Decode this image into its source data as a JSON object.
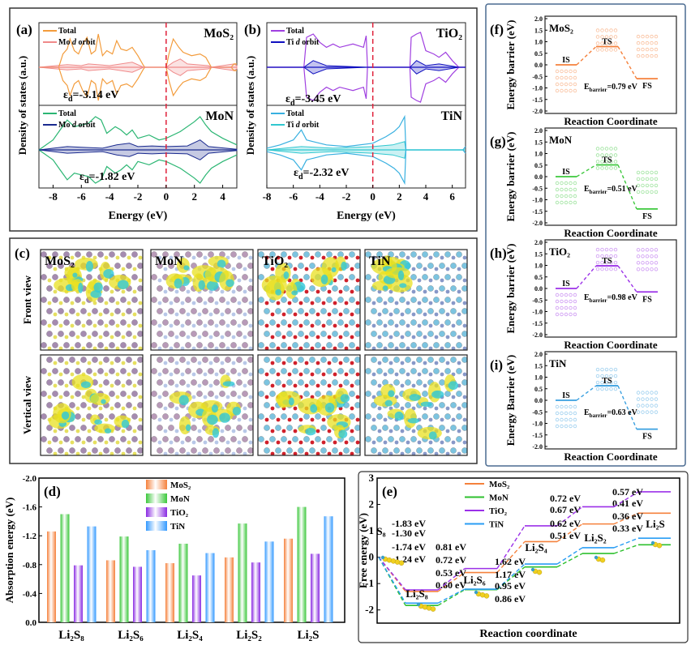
{
  "chart_data": [
    {
      "id": "a",
      "type": "line",
      "panel_label": "(a)",
      "xlabel": "Energy (eV)",
      "ylabel": "Density of states (a.u.)",
      "xlim": [
        -9,
        5
      ],
      "xticks": [
        -8,
        -6,
        -4,
        -2,
        0,
        2,
        4
      ],
      "fermi_level": 0,
      "subplots": [
        {
          "name": "MoS₂",
          "legend_total": "Total",
          "legend_d_pre": "Mo ",
          "legend_d_it": "d",
          "legend_d_post": " orbit",
          "ed_symbol": "ε",
          "ed_sub": "d",
          "ed_value": "=-3.14 eV",
          "color_total": "#f39c3c",
          "color_d": "#f08a8a",
          "total": [
            [
              -9,
              0
            ],
            [
              -7.6,
              0
            ],
            [
              -7.3,
              0.4
            ],
            [
              -7,
              0.55
            ],
            [
              -6.8,
              0.85
            ],
            [
              -6.5,
              0.5
            ],
            [
              -6.2,
              0.4
            ],
            [
              -5.9,
              0.7
            ],
            [
              -5.6,
              0.9
            ],
            [
              -5.3,
              0.4
            ],
            [
              -5.0,
              0.5
            ],
            [
              -4.8,
              1.0
            ],
            [
              -4.5,
              0.35
            ],
            [
              -4.2,
              0.5
            ],
            [
              -3.8,
              0.4
            ],
            [
              -3.5,
              0.8
            ],
            [
              -3.2,
              0.55
            ],
            [
              -2.8,
              0.5
            ],
            [
              -2.4,
              0.6
            ],
            [
              -2.0,
              0.35
            ],
            [
              -1.6,
              0.05
            ],
            [
              -1.5,
              0
            ],
            [
              0,
              0
            ],
            [
              0.2,
              0.4
            ],
            [
              0.5,
              0.85
            ],
            [
              0.9,
              0.6
            ],
            [
              1.2,
              0.45
            ],
            [
              1.8,
              0.35
            ],
            [
              2.4,
              0.4
            ],
            [
              2.8,
              0.3
            ],
            [
              3.2,
              0
            ],
            [
              4.6,
              0
            ],
            [
              4.8,
              0.1
            ],
            [
              5,
              0.1
            ]
          ],
          "d_orbit": [
            [
              -9,
              0
            ],
            [
              -7,
              0.08
            ],
            [
              -6,
              0.05
            ],
            [
              -5.5,
              0.1
            ],
            [
              -4,
              0.05
            ],
            [
              -2.4,
              0.15
            ],
            [
              -1.6,
              0
            ],
            [
              0,
              0
            ],
            [
              0.5,
              0.15
            ],
            [
              1,
              0.25
            ],
            [
              1.5,
              0.1
            ],
            [
              3,
              0.05
            ],
            [
              3.2,
              0
            ],
            [
              4.8,
              0.1
            ],
            [
              5,
              0.05
            ]
          ]
        },
        {
          "name": "MoN",
          "legend_total": "Total",
          "legend_d_pre": "Mo ",
          "legend_d_it": "d",
          "legend_d_post": " orbit",
          "ed_symbol": "ε",
          "ed_sub": "d",
          "ed_value": "=-1.82 eV",
          "color_total": "#2bb673",
          "color_d": "#1a2a8f",
          "total": [
            [
              -9,
              0
            ],
            [
              -8,
              0.3
            ],
            [
              -7.5,
              0.6
            ],
            [
              -7,
              0.9
            ],
            [
              -6.5,
              0.7
            ],
            [
              -6,
              0.75
            ],
            [
              -5.5,
              0.8
            ],
            [
              -5,
              1.0
            ],
            [
              -4.6,
              0.9
            ],
            [
              -4.2,
              0.5
            ],
            [
              -3.6,
              0.7
            ],
            [
              -3.2,
              0.6
            ],
            [
              -2.8,
              0.45
            ],
            [
              -2.4,
              0.6
            ],
            [
              -2,
              0.35
            ],
            [
              -1.2,
              0.45
            ],
            [
              -0.5,
              0.3
            ],
            [
              0,
              0.35
            ],
            [
              1,
              0.55
            ],
            [
              2,
              0.85
            ],
            [
              2.4,
              1.0
            ],
            [
              2.8,
              0.75
            ],
            [
              3.2,
              0.55
            ],
            [
              4,
              0.35
            ],
            [
              5,
              0.15
            ]
          ],
          "d_orbit": [
            [
              -9,
              0
            ],
            [
              -7,
              0.1
            ],
            [
              -6,
              0.08
            ],
            [
              -4.5,
              0.05
            ],
            [
              -3.5,
              0.15
            ],
            [
              -2.6,
              0.2
            ],
            [
              -2,
              0.1
            ],
            [
              -1,
              0.12
            ],
            [
              0,
              0.1
            ],
            [
              1.5,
              0.12
            ],
            [
              2.4,
              0.3
            ],
            [
              3,
              0.1
            ],
            [
              5,
              0.02
            ]
          ]
        }
      ]
    },
    {
      "id": "b",
      "type": "line",
      "panel_label": "(b)",
      "xlabel": "Energy (eV)",
      "ylabel": "Density of states (a.u.)",
      "xlim": [
        -8,
        7
      ],
      "xticks": [
        -8,
        -6,
        -4,
        -2,
        0,
        2,
        4,
        6
      ],
      "fermi_level": 0,
      "subplots": [
        {
          "name": "TiO₂",
          "legend_total": "Total",
          "legend_d_pre": "Ti ",
          "legend_d_it": "d",
          "legend_d_post": " orbit",
          "ed_symbol": "ε",
          "ed_sub": "d",
          "ed_value": "=-3.45 eV",
          "color_total": "#a040e0",
          "color_d": "#1010c0",
          "total": [
            [
              -8,
              0
            ],
            [
              -5.2,
              0
            ],
            [
              -5,
              0.9
            ],
            [
              -4.5,
              1.0
            ],
            [
              -4,
              0.75
            ],
            [
              -3.5,
              0.6
            ],
            [
              -3,
              0.7
            ],
            [
              -2.5,
              0.6
            ],
            [
              -1.5,
              0.7
            ],
            [
              -0.7,
              0.6
            ],
            [
              -0.5,
              0.95
            ],
            [
              -0.4,
              0
            ],
            [
              2.8,
              0
            ],
            [
              2.9,
              0.9
            ],
            [
              3.3,
              1.0
            ],
            [
              3.6,
              1.05
            ],
            [
              4,
              0.5
            ],
            [
              4.6,
              0.4
            ],
            [
              5,
              0.3
            ],
            [
              5.5,
              0.45
            ],
            [
              6,
              0.2
            ],
            [
              6.5,
              0
            ],
            [
              7,
              0
            ]
          ],
          "d_orbit": [
            [
              -8,
              0
            ],
            [
              -5.2,
              0
            ],
            [
              -4.5,
              0.2
            ],
            [
              -3.5,
              0.05
            ],
            [
              -0.4,
              0
            ],
            [
              2.8,
              0
            ],
            [
              3.3,
              0.2
            ],
            [
              4,
              0.05
            ],
            [
              5,
              0.1
            ],
            [
              6.5,
              0
            ],
            [
              7,
              0
            ]
          ]
        },
        {
          "name": "TiN",
          "legend_total": "Total",
          "legend_d_pre": "Ti ",
          "legend_d_it": "d",
          "legend_d_post": " orbit",
          "ed_symbol": "ε",
          "ed_sub": "d",
          "ed_value": "=-2.32 eV",
          "color_total": "#38b0e0",
          "color_d": "#30c8d0",
          "total": [
            [
              -8,
              0.05
            ],
            [
              -7,
              0.15
            ],
            [
              -6,
              0.3
            ],
            [
              -5.4,
              0.6
            ],
            [
              -5,
              0.3
            ],
            [
              -4.5,
              0.25
            ],
            [
              -3.5,
              0.15
            ],
            [
              -2,
              0.1
            ],
            [
              0,
              0.2
            ],
            [
              1,
              0.4
            ],
            [
              1.6,
              0.55
            ],
            [
              2,
              0.7
            ],
            [
              2.4,
              1.0
            ],
            [
              2.5,
              0
            ],
            [
              6.8,
              0
            ],
            [
              7,
              0.1
            ]
          ],
          "d_orbit": [
            [
              -8,
              0
            ],
            [
              -5.4,
              0.1
            ],
            [
              -3,
              0.05
            ],
            [
              0,
              0.1
            ],
            [
              1.5,
              0.15
            ],
            [
              2.4,
              0.25
            ],
            [
              2.5,
              0
            ],
            [
              7,
              0
            ]
          ]
        }
      ]
    },
    {
      "id": "d",
      "type": "bar",
      "panel_label": "(d)",
      "ylabel": "Absorption energy (eV)",
      "xlabel": "",
      "ylim": [
        0,
        -2.0
      ],
      "yticks": [
        0,
        -0.4,
        -0.8,
        -1.2,
        -1.6,
        -2.0
      ],
      "ytick_labels": [
        "0.0",
        "-0.4",
        "-0.8",
        "-1.2",
        "-1.6",
        "-2.0"
      ],
      "categories": [
        "Li₂S₈",
        "Li₂S₆",
        "Li₂S₄",
        "Li₂S₂",
        "Li₂S"
      ],
      "legend_position": "top-center",
      "series": [
        {
          "name": "MoS₂",
          "color": "#f5813c",
          "values": [
            -1.26,
            -0.86,
            -0.82,
            -0.9,
            -1.16
          ]
        },
        {
          "name": "MoN",
          "color": "#3cc83c",
          "values": [
            -1.5,
            -1.19,
            -1.09,
            -1.37,
            -1.6
          ]
        },
        {
          "name": "TiO₂",
          "color": "#8a2be2",
          "values": [
            -0.79,
            -0.77,
            -0.65,
            -0.83,
            -0.95
          ]
        },
        {
          "name": "TiN",
          "color": "#3399ff",
          "values": [
            -1.33,
            -1.0,
            -0.96,
            -1.12,
            -1.47
          ]
        }
      ]
    },
    {
      "id": "e",
      "type": "line",
      "panel_label": "(e)",
      "ylabel": "Free energy (eV)",
      "xlabel": "Reaction coordinate",
      "ylim": [
        -2.5,
        3
      ],
      "yticks": [
        -2,
        -1,
        0,
        1,
        2,
        3
      ],
      "states": [
        "S₈",
        "Li₂S₈",
        "Li₂S₆",
        "Li₂S₄",
        "Li₂S₂",
        "Li₂S"
      ],
      "legend_position": "top-center",
      "series": [
        {
          "name": "MoS₂",
          "color": "#f5813c",
          "values": [
            0,
            -1.3,
            -0.58,
            0.59,
            1.26,
            1.67
          ],
          "step_labels": [
            "-1.30 eV",
            "0.72 eV",
            "1.17 eV",
            "0.67 eV",
            "0.41 eV"
          ]
        },
        {
          "name": "MoN",
          "color": "#2ec02e",
          "values": [
            0,
            -1.83,
            -1.23,
            -0.37,
            0.14,
            0.47
          ],
          "step_labels": [
            "-1.83 eV",
            "0.60 eV",
            "0.86 eV",
            "0.51 eV",
            "0.33 eV"
          ]
        },
        {
          "name": "TiO₂",
          "color": "#9b30e8",
          "values": [
            0,
            -1.24,
            -0.43,
            1.19,
            1.91,
            2.48
          ],
          "step_labels": [
            "-1.24 eV",
            "0.81 eV",
            "1.62 eV",
            "0.72 eV",
            "0.57 eV"
          ]
        },
        {
          "name": "TiN",
          "color": "#2a9df4",
          "values": [
            0,
            -1.74,
            -1.21,
            -0.26,
            0.36,
            0.72
          ],
          "step_labels": [
            "-1.74 eV",
            "0.53 eV",
            "0.95 eV",
            "0.62 eV",
            "0.36 eV"
          ]
        }
      ]
    },
    {
      "id": "barriers",
      "type": "line",
      "ylim": [
        -2.0,
        2.0
      ],
      "yticks": [
        -2,
        -1.5,
        -1,
        -0.5,
        0,
        0.5,
        1,
        1.5,
        2
      ],
      "ytick_labels": [
        "-2.0",
        "-1.5",
        "-1.0",
        "-0.5",
        "0.0",
        "0.5",
        "1.0",
        "1.5",
        "2.0"
      ],
      "xlabel": "Reaction Coordinate",
      "state_labels": [
        "IS",
        "TS",
        "FS"
      ],
      "e_symbol": "E",
      "e_sub": "barrier",
      "panels": [
        {
          "panel_label": "(f)",
          "name": "MoS₂",
          "ylabel": "Energy barrier (eV)",
          "color": "#f5813c",
          "IS": 0,
          "TS": 0.79,
          "FS": -0.6,
          "barrier_value": "=0.79 eV"
        },
        {
          "panel_label": "(g)",
          "name": "MoN",
          "ylabel": "Energy barrier (eV)",
          "color": "#3cc83c",
          "IS": 0,
          "TS": 0.51,
          "FS": -1.4,
          "barrier_value": "=0.51 eV"
        },
        {
          "panel_label": "(h)",
          "name": "TiO₂",
          "ylabel": "Energy barrier (eV)",
          "color": "#9b30e8",
          "IS": 0,
          "TS": 0.98,
          "FS": -0.15,
          "barrier_value": "=0.98 eV"
        },
        {
          "panel_label": "(i)",
          "name": "TiN",
          "ylabel": "Energy Barrier (eV)",
          "color": "#3aa0e0",
          "IS": 0,
          "TS": 0.63,
          "FS": -1.25,
          "barrier_value": "=0.63 eV"
        }
      ]
    }
  ],
  "panel_c": {
    "panel_label": "(c)",
    "row_labels": [
      "Front view",
      "Vertical view"
    ],
    "materials": [
      {
        "name": "MoS₂",
        "atom_a": "#a58bb0",
        "atom_b": "#e6e060"
      },
      {
        "name": "MoN",
        "atom_a": "#b89ab8",
        "atom_b": "#b8c8e8"
      },
      {
        "name": "TiO₂",
        "atom_a": "#7cc4e0",
        "atom_b": "#d0202a"
      },
      {
        "name": "TiN",
        "atom_a": "#7cc4e0",
        "atom_b": "#8898c8"
      }
    ],
    "charge_colors": {
      "accumulation": "#e8e020",
      "depletion": "#30c8d8"
    }
  }
}
